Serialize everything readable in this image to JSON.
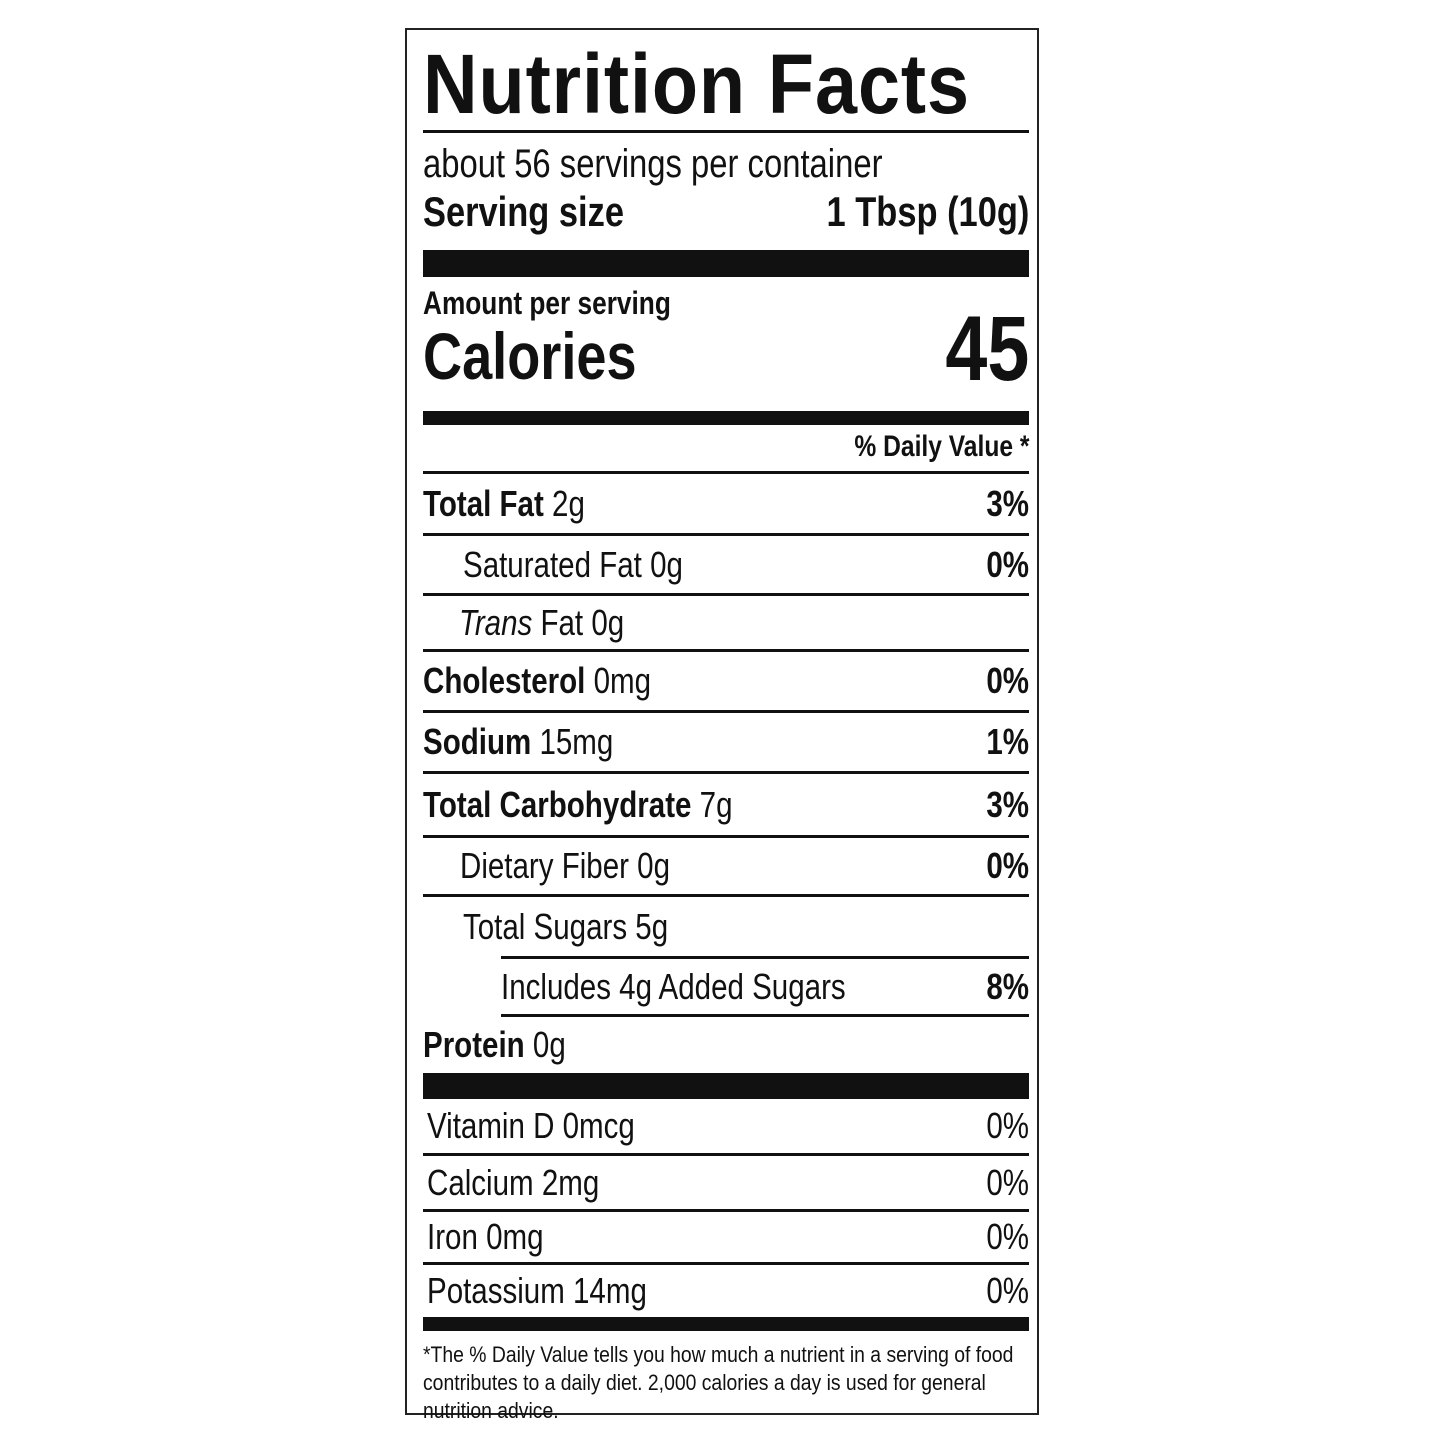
{
  "title": "Nutrition Facts",
  "servings_per_container": "about 56 servings per container",
  "serving_size": {
    "label": "Serving size",
    "value": "1 Tbsp (10g)"
  },
  "amount_per_serving": "Amount per serving",
  "calories": {
    "label": "Calories",
    "value": "45"
  },
  "daily_value_header": "% Daily Value *",
  "nutrients": [
    {
      "name": "Total Fat",
      "amount": "2g",
      "dv": "3%"
    },
    {
      "name": "Saturated Fat 0g",
      "amount": "",
      "dv": "0%"
    },
    {
      "name": "Trans",
      "amount": "Fat 0g",
      "dv": ""
    },
    {
      "name": "Cholesterol",
      "amount": "0mg",
      "dv": "0%"
    },
    {
      "name": "Sodium",
      "amount": "15mg",
      "dv": "1%"
    },
    {
      "name": "Total Carbohydrate",
      "amount": "7g",
      "dv": "3%"
    },
    {
      "name": "Dietary Fiber 0g",
      "amount": "",
      "dv": "0%"
    },
    {
      "name": "Total Sugars 5g",
      "amount": "",
      "dv": ""
    },
    {
      "name": "Includes 4g Added Sugars",
      "amount": "",
      "dv": "8%"
    },
    {
      "name": "Protein",
      "amount": "0g",
      "dv": ""
    }
  ],
  "vitamins": [
    {
      "name": "Vitamin D 0mcg",
      "dv": "0%"
    },
    {
      "name": "Calcium 2mg",
      "dv": "0%"
    },
    {
      "name": "Iron 0mg",
      "dv": "0%"
    },
    {
      "name": "Potassium 14mg",
      "dv": "0%"
    }
  ],
  "footnote": "*The % Daily Value tells you how much a nutrient in a serving of food contributes to a daily diet. 2,000 calories a day is used for general nutrition advice."
}
